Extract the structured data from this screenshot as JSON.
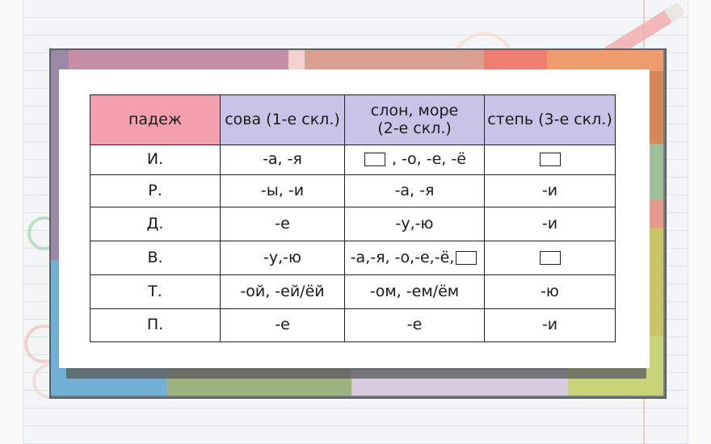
{
  "colors": {
    "header_case": "#f4a0ac",
    "header_declension": "#c9c3e8",
    "border": "#222222",
    "background_grid": "#dbe3ea"
  },
  "table": {
    "headers": [
      {
        "text": "падеж"
      },
      {
        "text": "сова (1-е скл.)"
      },
      {
        "line1": "слон, море",
        "line2": "(2-е скл.)"
      },
      {
        "text": "степь (3-е скл.)"
      }
    ],
    "rows": [
      {
        "case": "И.",
        "cells": [
          {
            "text": "-а, -я",
            "box_before": false,
            "box_after": false
          },
          {
            "text": " , -о, -е, -ё",
            "box_before": true,
            "box_after": false
          },
          {
            "text": "",
            "box_before": true,
            "box_after": false
          }
        ]
      },
      {
        "case": "Р.",
        "cells": [
          {
            "text": "-ы, -и",
            "box_before": false,
            "box_after": false
          },
          {
            "text": "-а, -я",
            "box_before": false,
            "box_after": false
          },
          {
            "text": "-и",
            "box_before": false,
            "box_after": false
          }
        ]
      },
      {
        "case": "Д.",
        "cells": [
          {
            "text": "-е",
            "box_before": false,
            "box_after": false
          },
          {
            "text": "-у,-ю",
            "box_before": false,
            "box_after": false
          },
          {
            "text": "-и",
            "box_before": false,
            "box_after": false
          }
        ]
      },
      {
        "case": "В.",
        "cells": [
          {
            "text": "-у,-ю",
            "box_before": false,
            "box_after": false
          },
          {
            "text": "-а,-я, -о,-е,-ё,",
            "box_before": false,
            "box_after": true
          },
          {
            "text": "",
            "box_before": true,
            "box_after": false
          }
        ]
      },
      {
        "case": "Т.",
        "cells": [
          {
            "text": "-ой, -ей/ёй",
            "box_before": false,
            "box_after": false
          },
          {
            "text": "-ом, -ем/ём",
            "box_before": false,
            "box_after": false
          },
          {
            "text": "-ю",
            "box_before": false,
            "box_after": false
          }
        ]
      },
      {
        "case": "П.",
        "cells": [
          {
            "text": "-е",
            "box_before": false,
            "box_after": false
          },
          {
            "text": "-е",
            "box_before": false,
            "box_after": false
          },
          {
            "text": "-и",
            "box_before": false,
            "box_after": false
          }
        ]
      }
    ]
  }
}
